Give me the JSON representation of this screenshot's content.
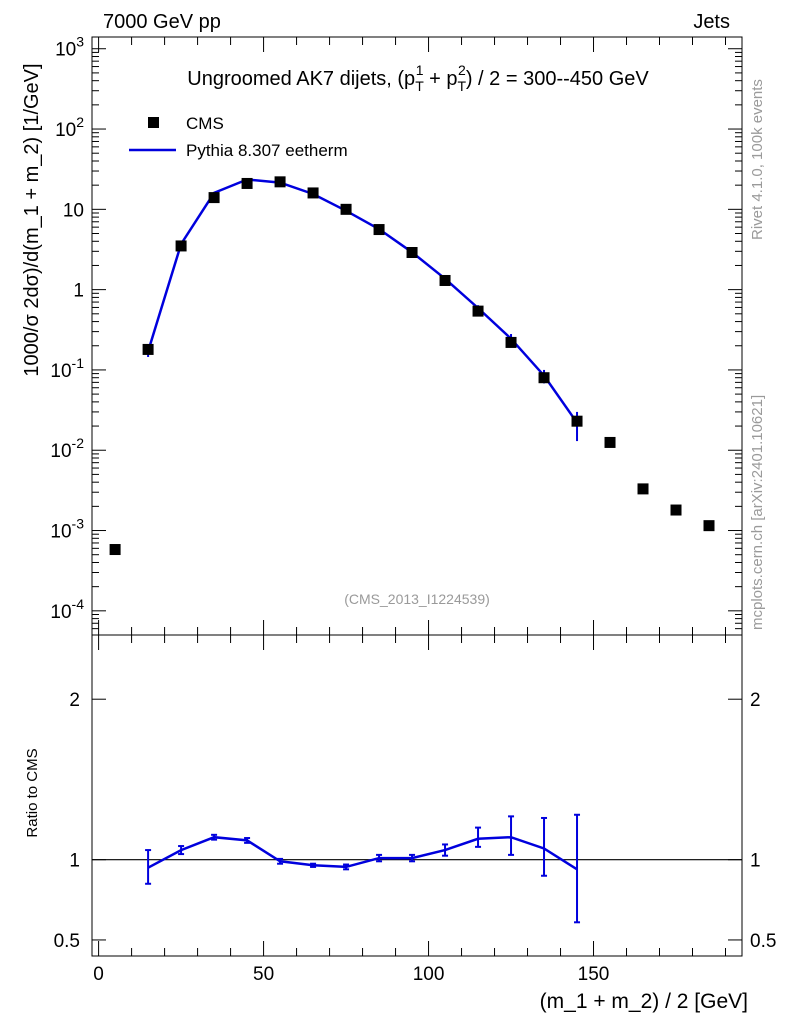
{
  "header": {
    "left": "7000 GeV pp",
    "right": "Jets"
  },
  "side": {
    "rivet": "Rivet 4.1.0,  100k events",
    "mcplots": "mcplots.cern.ch [arXiv:2401.10621]"
  },
  "chart_data": [
    {
      "type": "scatter",
      "panel": "main",
      "title_prefix": "Ungroomed AK7 dijets, (p",
      "title_sub": "T",
      "title_sup1": "1",
      "title_sup2": "2",
      "title_middle": " + p",
      "title_suffix": ") / 2 = 300--450 GeV",
      "ylabel": "1000/σ   2dσ)/d(m_1 + m_2) [1/GeV]",
      "xlabel": "(m_1 + m_2) / 2 [GeV]",
      "yscale": "log",
      "xlim": [
        -2,
        195
      ],
      "ylim": [
        5e-05,
        1400
      ],
      "xticks": [
        0,
        50,
        100,
        150
      ],
      "xtick_labels": [
        "0",
        "50",
        "100",
        "150"
      ],
      "ytick_labels": [
        {
          "base": "10",
          "exp": "-4"
        },
        {
          "base": "10",
          "exp": "-3"
        },
        {
          "base": "10",
          "exp": "-2"
        },
        {
          "base": "10",
          "exp": "-1"
        },
        {
          "base": "1",
          "exp": ""
        },
        {
          "base": "10",
          "exp": ""
        },
        {
          "base": "10",
          "exp": "2"
        },
        {
          "base": "10",
          "exp": "3"
        }
      ],
      "watermark": "(CMS_2013_I1224539)",
      "legend_position": "top-left",
      "series": [
        {
          "name": "CMS",
          "style": "markers",
          "color": "#000000",
          "x": [
            5,
            15,
            25,
            35,
            45,
            55,
            65,
            75,
            85,
            95,
            105,
            115,
            125,
            135,
            145,
            155,
            165,
            175,
            185
          ],
          "y": [
            0.00058,
            0.18,
            3.5,
            14,
            21,
            22,
            16,
            10,
            5.6,
            2.9,
            1.3,
            0.54,
            0.22,
            0.08,
            0.023,
            0.0125,
            0.0033,
            0.0018,
            0.00115
          ]
        },
        {
          "name": "Pythia 8.307 eetherm",
          "style": "line",
          "color": "#0000dd",
          "x": [
            15,
            25,
            35,
            45,
            55,
            65,
            75,
            85,
            95,
            105,
            115,
            125,
            135,
            145
          ],
          "y": [
            0.17,
            3.7,
            16,
            23.5,
            21.5,
            15.5,
            9.6,
            5.65,
            2.92,
            1.37,
            0.59,
            0.245,
            0.085,
            0.022
          ],
          "err_lo": [
            0.145,
            3.5,
            15.6,
            23.0,
            21.0,
            15.2,
            9.3,
            5.45,
            2.8,
            1.28,
            0.54,
            0.215,
            0.068,
            0.013
          ],
          "err_hi": [
            0.2,
            3.95,
            16.4,
            24.0,
            22.0,
            15.8,
            9.9,
            5.85,
            3.05,
            1.45,
            0.64,
            0.28,
            0.1,
            0.03
          ]
        }
      ]
    },
    {
      "type": "line",
      "panel": "ratio",
      "ylabel": "Ratio to CMS",
      "xlabel": "(m_1 + m_2) / 2 [GeV]",
      "xlim": [
        -2,
        195
      ],
      "ylim": [
        0.4,
        2.4
      ],
      "ytick_labels": [
        {
          "value": 0.5,
          "label": "0.5"
        },
        {
          "value": 1,
          "label": "1"
        },
        {
          "value": 2,
          "label": "2"
        }
      ],
      "reference": 1,
      "series": [
        {
          "name": "Pythia 8.307 eetherm / CMS",
          "color": "#0000dd",
          "x": [
            15,
            25,
            35,
            45,
            55,
            65,
            75,
            85,
            95,
            105,
            115,
            125,
            135,
            145
          ],
          "y": [
            0.95,
            1.06,
            1.14,
            1.12,
            0.99,
            0.965,
            0.955,
            1.01,
            1.01,
            1.06,
            1.13,
            1.14,
            1.07,
            0.94
          ],
          "err_lo": [
            0.85,
            1.035,
            1.125,
            1.105,
            0.975,
            0.955,
            0.94,
            0.99,
            0.99,
            1.025,
            1.08,
            1.03,
            0.9,
            0.61
          ],
          "err_hi": [
            1.06,
            1.085,
            1.155,
            1.135,
            1.005,
            0.975,
            0.97,
            1.03,
            1.03,
            1.095,
            1.2,
            1.27,
            1.26,
            1.28
          ]
        }
      ]
    }
  ]
}
